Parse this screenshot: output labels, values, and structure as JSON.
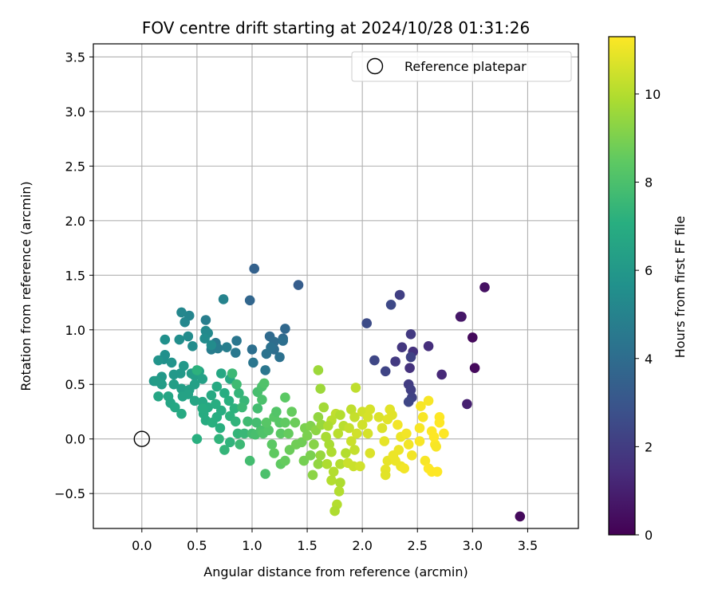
{
  "chart_data": {
    "type": "scatter",
    "title": "FOV centre drift starting at 2024/10/28 01:31:26",
    "xlabel": "Angular distance from reference (arcmin)",
    "ylabel": "Rotation from reference (arcmin)",
    "xlim": [
      -0.44,
      3.96
    ],
    "ylim": [
      -0.82,
      3.62
    ],
    "xticks": [
      0.0,
      0.5,
      1.0,
      1.5,
      2.0,
      2.5,
      3.0,
      3.5
    ],
    "xtick_labels": [
      "0.0",
      "0.5",
      "1.0",
      "1.5",
      "2.0",
      "2.5",
      "3.0",
      "3.5"
    ],
    "yticks": [
      -0.5,
      0.0,
      0.5,
      1.0,
      1.5,
      2.0,
      2.5,
      3.0,
      3.5
    ],
    "ytick_labels": [
      "−0.5",
      "0.0",
      "0.5",
      "1.0",
      "1.5",
      "2.0",
      "2.5",
      "3.0",
      "3.5"
    ],
    "grid": true,
    "legend": {
      "position": "top-right",
      "entries": [
        {
          "label": "Reference platepar",
          "marker": "open-circle"
        }
      ]
    },
    "reference_point": {
      "x": 0.0,
      "y": 0.0
    },
    "colorbar": {
      "label": "Hours from first FF file",
      "colormap": "viridis",
      "range": [
        0,
        11.3
      ],
      "ticks": [
        0,
        2,
        4,
        6,
        8,
        10
      ],
      "tick_labels": [
        "0",
        "2",
        "4",
        "6",
        "8",
        "10"
      ]
    },
    "points": [
      {
        "x": 3.43,
        "y": -0.71,
        "t": 0.3
      },
      {
        "x": 3.11,
        "y": 1.39,
        "t": 0.5
      },
      {
        "x": 3.0,
        "y": 0.93,
        "t": 0.3
      },
      {
        "x": 3.02,
        "y": 0.65,
        "t": 0.3
      },
      {
        "x": 2.9,
        "y": 1.12,
        "t": 0.6
      },
      {
        "x": 2.89,
        "y": 1.12,
        "t": 0.7
      },
      {
        "x": 2.95,
        "y": 0.32,
        "t": 1.0
      },
      {
        "x": 2.72,
        "y": 0.59,
        "t": 1.3
      },
      {
        "x": 2.6,
        "y": 0.85,
        "t": 1.5
      },
      {
        "x": 2.46,
        "y": 0.8,
        "t": 1.6
      },
      {
        "x": 2.36,
        "y": 0.84,
        "t": 1.8
      },
      {
        "x": 2.44,
        "y": 0.96,
        "t": 1.9
      },
      {
        "x": 2.43,
        "y": 0.65,
        "t": 1.6
      },
      {
        "x": 2.42,
        "y": 0.5,
        "t": 2.0
      },
      {
        "x": 2.44,
        "y": 0.45,
        "t": 2.1
      },
      {
        "x": 2.45,
        "y": 0.38,
        "t": 2.2
      },
      {
        "x": 2.42,
        "y": 0.34,
        "t": 2.4
      },
      {
        "x": 2.44,
        "y": 0.75,
        "t": 2.2
      },
      {
        "x": 2.3,
        "y": 0.71,
        "t": 1.9
      },
      {
        "x": 2.21,
        "y": 0.62,
        "t": 2.3
      },
      {
        "x": 2.26,
        "y": 1.23,
        "t": 2.5
      },
      {
        "x": 2.34,
        "y": 1.32,
        "t": 2.1
      },
      {
        "x": 2.11,
        "y": 0.72,
        "t": 2.4
      },
      {
        "x": 2.04,
        "y": 1.06,
        "t": 2.6
      },
      {
        "x": 1.42,
        "y": 1.41,
        "t": 3.3
      },
      {
        "x": 1.02,
        "y": 1.56,
        "t": 3.5
      },
      {
        "x": 0.98,
        "y": 1.27,
        "t": 3.7
      },
      {
        "x": 1.3,
        "y": 1.01,
        "t": 3.8
      },
      {
        "x": 1.16,
        "y": 0.94,
        "t": 3.9
      },
      {
        "x": 1.2,
        "y": 0.89,
        "t": 4.0
      },
      {
        "x": 1.28,
        "y": 0.92,
        "t": 3.9
      },
      {
        "x": 1.28,
        "y": 0.9,
        "t": 4.1
      },
      {
        "x": 1.2,
        "y": 0.82,
        "t": 4.0
      },
      {
        "x": 1.17,
        "y": 0.84,
        "t": 4.2
      },
      {
        "x": 1.25,
        "y": 0.75,
        "t": 4.2
      },
      {
        "x": 1.13,
        "y": 0.78,
        "t": 4.3
      },
      {
        "x": 1.0,
        "y": 0.82,
        "t": 4.1
      },
      {
        "x": 1.01,
        "y": 0.7,
        "t": 4.4
      },
      {
        "x": 1.12,
        "y": 0.63,
        "t": 4.4
      },
      {
        "x": 0.86,
        "y": 0.9,
        "t": 4.4
      },
      {
        "x": 0.85,
        "y": 0.79,
        "t": 4.5
      },
      {
        "x": 0.67,
        "y": 0.88,
        "t": 4.6
      },
      {
        "x": 0.69,
        "y": 0.83,
        "t": 4.7
      },
      {
        "x": 0.77,
        "y": 0.84,
        "t": 4.8
      },
      {
        "x": 0.63,
        "y": 0.82,
        "t": 4.7
      },
      {
        "x": 0.58,
        "y": 1.09,
        "t": 4.8
      },
      {
        "x": 0.74,
        "y": 1.28,
        "t": 5.0
      },
      {
        "x": 0.43,
        "y": 1.13,
        "t": 5.1
      },
      {
        "x": 0.39,
        "y": 1.07,
        "t": 5.2
      },
      {
        "x": 0.36,
        "y": 1.16,
        "t": 5.2
      },
      {
        "x": 0.58,
        "y": 0.99,
        "t": 5.3
      },
      {
        "x": 0.6,
        "y": 0.97,
        "t": 5.3
      },
      {
        "x": 0.57,
        "y": 0.92,
        "t": 5.4
      },
      {
        "x": 0.42,
        "y": 0.94,
        "t": 5.4
      },
      {
        "x": 0.34,
        "y": 0.91,
        "t": 5.5
      },
      {
        "x": 0.21,
        "y": 0.91,
        "t": 5.6
      },
      {
        "x": 0.46,
        "y": 0.85,
        "t": 5.4
      },
      {
        "x": 0.63,
        "y": 0.86,
        "t": 5.4
      },
      {
        "x": 0.21,
        "y": 0.77,
        "t": 5.6
      },
      {
        "x": 0.2,
        "y": 0.73,
        "t": 5.6
      },
      {
        "x": 0.15,
        "y": 0.72,
        "t": 5.8
      },
      {
        "x": 0.27,
        "y": 0.7,
        "t": 5.8
      },
      {
        "x": 0.38,
        "y": 0.67,
        "t": 6.0
      },
      {
        "x": 0.35,
        "y": 0.6,
        "t": 6.0
      },
      {
        "x": 0.29,
        "y": 0.59,
        "t": 6.0
      },
      {
        "x": 0.18,
        "y": 0.57,
        "t": 6.0
      },
      {
        "x": 0.11,
        "y": 0.53,
        "t": 6.0
      },
      {
        "x": 0.13,
        "y": 0.53,
        "t": 6.2
      },
      {
        "x": 0.18,
        "y": 0.5,
        "t": 6.2
      },
      {
        "x": 0.29,
        "y": 0.5,
        "t": 6.3
      },
      {
        "x": 0.36,
        "y": 0.46,
        "t": 6.3
      },
      {
        "x": 0.45,
        "y": 0.6,
        "t": 6.2
      },
      {
        "x": 0.48,
        "y": 0.58,
        "t": 6.3
      },
      {
        "x": 0.55,
        "y": 0.55,
        "t": 6.4
      },
      {
        "x": 0.52,
        "y": 0.62,
        "t": 6.5
      },
      {
        "x": 0.48,
        "y": 0.5,
        "t": 6.4
      },
      {
        "x": 0.43,
        "y": 0.45,
        "t": 6.4
      },
      {
        "x": 0.42,
        "y": 0.41,
        "t": 6.5
      },
      {
        "x": 0.37,
        "y": 0.39,
        "t": 6.5
      },
      {
        "x": 0.24,
        "y": 0.39,
        "t": 6.6
      },
      {
        "x": 0.15,
        "y": 0.39,
        "t": 6.6
      },
      {
        "x": 0.26,
        "y": 0.33,
        "t": 6.6
      },
      {
        "x": 0.3,
        "y": 0.29,
        "t": 6.7
      },
      {
        "x": 0.36,
        "y": 0.23,
        "t": 6.8
      },
      {
        "x": 0.48,
        "y": 0.35,
        "t": 6.6
      },
      {
        "x": 0.55,
        "y": 0.34,
        "t": 6.7
      },
      {
        "x": 0.6,
        "y": 0.29,
        "t": 6.8
      },
      {
        "x": 0.56,
        "y": 0.23,
        "t": 6.9
      },
      {
        "x": 0.58,
        "y": 0.17,
        "t": 6.9
      },
      {
        "x": 0.55,
        "y": 0.28,
        "t": 6.9
      },
      {
        "x": 0.63,
        "y": 0.4,
        "t": 6.8
      },
      {
        "x": 0.67,
        "y": 0.32,
        "t": 7.0
      },
      {
        "x": 0.72,
        "y": 0.26,
        "t": 7.0
      },
      {
        "x": 0.68,
        "y": 0.2,
        "t": 7.0
      },
      {
        "x": 0.64,
        "y": 0.15,
        "t": 7.1
      },
      {
        "x": 0.71,
        "y": 0.1,
        "t": 7.1
      },
      {
        "x": 0.72,
        "y": 0.6,
        "t": 6.7
      },
      {
        "x": 0.8,
        "y": 0.55,
        "t": 6.8
      },
      {
        "x": 0.68,
        "y": 0.48,
        "t": 6.8
      },
      {
        "x": 0.75,
        "y": 0.42,
        "t": 7.0
      },
      {
        "x": 0.79,
        "y": 0.35,
        "t": 7.1
      },
      {
        "x": 0.84,
        "y": 0.28,
        "t": 7.2
      },
      {
        "x": 0.8,
        "y": 0.21,
        "t": 7.2
      },
      {
        "x": 0.85,
        "y": 0.16,
        "t": 7.3
      },
      {
        "x": 0.5,
        "y": 0.63,
        "t": 7.2
      },
      {
        "x": 0.5,
        "y": 0.0,
        "t": 7.1
      },
      {
        "x": 0.7,
        "y": 0.0,
        "t": 7.3
      },
      {
        "x": 0.75,
        "y": -0.1,
        "t": 7.4
      },
      {
        "x": 0.8,
        "y": -0.03,
        "t": 7.3
      },
      {
        "x": 0.87,
        "y": 0.05,
        "t": 7.4
      },
      {
        "x": 0.93,
        "y": 0.05,
        "t": 7.5
      },
      {
        "x": 0.89,
        "y": -0.05,
        "t": 7.6
      },
      {
        "x": 0.88,
        "y": 0.42,
        "t": 7.4
      },
      {
        "x": 0.93,
        "y": 0.35,
        "t": 7.5
      },
      {
        "x": 0.91,
        "y": 0.29,
        "t": 7.6
      },
      {
        "x": 0.96,
        "y": 0.16,
        "t": 7.7
      },
      {
        "x": 1.0,
        "y": 0.05,
        "t": 7.8
      },
      {
        "x": 1.03,
        "y": 0.04,
        "t": 7.9
      },
      {
        "x": 1.08,
        "y": 0.08,
        "t": 8.0
      },
      {
        "x": 1.04,
        "y": 0.15,
        "t": 7.8
      },
      {
        "x": 1.05,
        "y": 0.28,
        "t": 7.8
      },
      {
        "x": 1.05,
        "y": 0.43,
        "t": 7.9
      },
      {
        "x": 1.09,
        "y": 0.48,
        "t": 8.0
      },
      {
        "x": 1.11,
        "y": 0.51,
        "t": 8.1
      },
      {
        "x": 1.09,
        "y": 0.36,
        "t": 8.0
      },
      {
        "x": 0.82,
        "y": 0.6,
        "t": 7.6
      },
      {
        "x": 0.86,
        "y": 0.5,
        "t": 7.7
      },
      {
        "x": 0.98,
        "y": -0.2,
        "t": 7.8
      },
      {
        "x": 1.12,
        "y": -0.32,
        "t": 8.0
      },
      {
        "x": 1.1,
        "y": 0.05,
        "t": 8.1
      },
      {
        "x": 1.15,
        "y": 0.08,
        "t": 8.2
      },
      {
        "x": 1.13,
        "y": 0.15,
        "t": 8.3
      },
      {
        "x": 1.2,
        "y": 0.2,
        "t": 8.3
      },
      {
        "x": 1.22,
        "y": 0.25,
        "t": 8.2
      },
      {
        "x": 1.25,
        "y": 0.15,
        "t": 8.3
      },
      {
        "x": 1.26,
        "y": 0.05,
        "t": 8.4
      },
      {
        "x": 1.18,
        "y": -0.05,
        "t": 8.4
      },
      {
        "x": 1.2,
        "y": -0.13,
        "t": 8.5
      },
      {
        "x": 1.26,
        "y": -0.23,
        "t": 8.5
      },
      {
        "x": 1.3,
        "y": -0.2,
        "t": 8.6
      },
      {
        "x": 1.3,
        "y": 0.38,
        "t": 8.4
      },
      {
        "x": 1.3,
        "y": 0.15,
        "t": 8.5
      },
      {
        "x": 1.33,
        "y": 0.05,
        "t": 8.6
      },
      {
        "x": 1.36,
        "y": 0.25,
        "t": 8.6
      },
      {
        "x": 1.39,
        "y": 0.15,
        "t": 8.7
      },
      {
        "x": 1.34,
        "y": -0.1,
        "t": 8.7
      },
      {
        "x": 1.4,
        "y": -0.05,
        "t": 8.8
      },
      {
        "x": 1.45,
        "y": -0.03,
        "t": 8.8
      },
      {
        "x": 1.47,
        "y": -0.2,
        "t": 8.9
      },
      {
        "x": 1.53,
        "y": -0.15,
        "t": 9.0
      },
      {
        "x": 1.48,
        "y": 0.1,
        "t": 9.0
      },
      {
        "x": 1.53,
        "y": 0.12,
        "t": 9.1
      },
      {
        "x": 1.5,
        "y": 0.03,
        "t": 9.0
      },
      {
        "x": 1.56,
        "y": -0.05,
        "t": 9.2
      },
      {
        "x": 1.55,
        "y": -0.33,
        "t": 9.3
      },
      {
        "x": 1.6,
        "y": -0.23,
        "t": 9.4
      },
      {
        "x": 1.62,
        "y": -0.15,
        "t": 9.5
      },
      {
        "x": 1.58,
        "y": 0.08,
        "t": 9.3
      },
      {
        "x": 1.6,
        "y": 0.2,
        "t": 9.4
      },
      {
        "x": 1.63,
        "y": 0.13,
        "t": 9.5
      },
      {
        "x": 1.6,
        "y": 0.63,
        "t": 9.6
      },
      {
        "x": 1.62,
        "y": 0.46,
        "t": 9.6
      },
      {
        "x": 1.65,
        "y": 0.29,
        "t": 9.7
      },
      {
        "x": 1.67,
        "y": 0.02,
        "t": 9.8
      },
      {
        "x": 1.7,
        "y": -0.05,
        "t": 9.8
      },
      {
        "x": 1.72,
        "y": -0.12,
        "t": 9.9
      },
      {
        "x": 1.68,
        "y": -0.23,
        "t": 9.9
      },
      {
        "x": 1.74,
        "y": -0.3,
        "t": 10.0
      },
      {
        "x": 1.72,
        "y": -0.38,
        "t": 10.0
      },
      {
        "x": 1.8,
        "y": -0.4,
        "t": 9.9
      },
      {
        "x": 1.79,
        "y": -0.48,
        "t": 10.0
      },
      {
        "x": 1.77,
        "y": -0.6,
        "t": 10.0
      },
      {
        "x": 1.75,
        "y": -0.66,
        "t": 9.9
      },
      {
        "x": 1.8,
        "y": -0.23,
        "t": 10.0
      },
      {
        "x": 1.85,
        "y": -0.13,
        "t": 10.0
      },
      {
        "x": 1.78,
        "y": 0.05,
        "t": 10.1
      },
      {
        "x": 1.83,
        "y": 0.12,
        "t": 10.1
      },
      {
        "x": 1.76,
        "y": 0.23,
        "t": 10.2
      },
      {
        "x": 1.8,
        "y": 0.22,
        "t": 10.0
      },
      {
        "x": 1.72,
        "y": 0.17,
        "t": 10.1
      },
      {
        "x": 1.69,
        "y": 0.12,
        "t": 9.9
      },
      {
        "x": 1.9,
        "y": 0.27,
        "t": 10.2
      },
      {
        "x": 1.94,
        "y": 0.47,
        "t": 10.2
      },
      {
        "x": 1.93,
        "y": 0.2,
        "t": 10.3
      },
      {
        "x": 1.88,
        "y": 0.1,
        "t": 10.3
      },
      {
        "x": 1.9,
        "y": -0.02,
        "t": 10.4
      },
      {
        "x": 1.93,
        "y": -0.1,
        "t": 10.3
      },
      {
        "x": 1.87,
        "y": -0.22,
        "t": 10.4
      },
      {
        "x": 1.92,
        "y": -0.25,
        "t": 10.4
      },
      {
        "x": 1.98,
        "y": -0.25,
        "t": 10.5
      },
      {
        "x": 1.95,
        "y": 0.05,
        "t": 10.5
      },
      {
        "x": 2.0,
        "y": 0.13,
        "t": 10.5
      },
      {
        "x": 2.0,
        "y": 0.25,
        "t": 10.5
      },
      {
        "x": 2.05,
        "y": 0.2,
        "t": 10.6
      },
      {
        "x": 2.07,
        "y": 0.27,
        "t": 10.6
      },
      {
        "x": 2.05,
        "y": 0.05,
        "t": 10.6
      },
      {
        "x": 2.07,
        "y": -0.13,
        "t": 10.7
      },
      {
        "x": 2.15,
        "y": 0.2,
        "t": 10.7
      },
      {
        "x": 2.18,
        "y": 0.1,
        "t": 10.7
      },
      {
        "x": 2.23,
        "y": 0.18,
        "t": 10.8
      },
      {
        "x": 2.25,
        "y": 0.27,
        "t": 10.8
      },
      {
        "x": 2.27,
        "y": 0.22,
        "t": 10.8
      },
      {
        "x": 2.2,
        "y": -0.02,
        "t": 10.9
      },
      {
        "x": 2.23,
        "y": -0.2,
        "t": 10.9
      },
      {
        "x": 2.21,
        "y": -0.28,
        "t": 10.9
      },
      {
        "x": 2.21,
        "y": -0.33,
        "t": 10.8
      },
      {
        "x": 2.28,
        "y": -0.15,
        "t": 11.0
      },
      {
        "x": 2.3,
        "y": -0.2,
        "t": 11.0
      },
      {
        "x": 2.33,
        "y": -0.1,
        "t": 11.0
      },
      {
        "x": 2.35,
        "y": -0.25,
        "t": 11.0
      },
      {
        "x": 2.38,
        "y": -0.27,
        "t": 11.1
      },
      {
        "x": 2.35,
        "y": 0.02,
        "t": 11.0
      },
      {
        "x": 2.32,
        "y": 0.13,
        "t": 11.1
      },
      {
        "x": 2.4,
        "y": 0.05,
        "t": 11.1
      },
      {
        "x": 2.42,
        "y": -0.05,
        "t": 11.1
      },
      {
        "x": 2.45,
        "y": -0.15,
        "t": 11.1
      },
      {
        "x": 2.52,
        "y": 0.1,
        "t": 11.2
      },
      {
        "x": 2.55,
        "y": 0.2,
        "t": 11.2
      },
      {
        "x": 2.53,
        "y": 0.3,
        "t": 11.2
      },
      {
        "x": 2.52,
        "y": -0.02,
        "t": 11.2
      },
      {
        "x": 2.57,
        "y": -0.2,
        "t": 11.2
      },
      {
        "x": 2.6,
        "y": -0.27,
        "t": 11.3
      },
      {
        "x": 2.63,
        "y": -0.3,
        "t": 11.3
      },
      {
        "x": 2.68,
        "y": -0.3,
        "t": 11.3
      },
      {
        "x": 2.6,
        "y": 0.35,
        "t": 11.2
      },
      {
        "x": 2.63,
        "y": 0.07,
        "t": 11.3
      },
      {
        "x": 2.66,
        "y": -0.05,
        "t": 11.3
      },
      {
        "x": 2.67,
        "y": -0.07,
        "t": 11.2
      },
      {
        "x": 2.7,
        "y": 0.15,
        "t": 11.3
      },
      {
        "x": 2.7,
        "y": 0.2,
        "t": 11.3
      },
      {
        "x": 2.74,
        "y": 0.05,
        "t": 11.3
      },
      {
        "x": 2.65,
        "y": 0.02,
        "t": 11.3
      }
    ]
  }
}
